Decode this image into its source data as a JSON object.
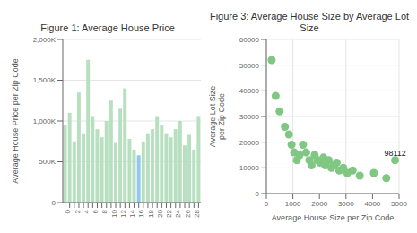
{
  "chart_data": [
    {
      "type": "bar",
      "title": "Figure 1: Average House Price",
      "ylabel": "Average House Price per Zip Code",
      "categories": [
        "0",
        null,
        "2",
        null,
        "4",
        null,
        "6",
        null,
        "8",
        null,
        "10",
        null,
        "12",
        null,
        "14",
        null,
        "16",
        null,
        "18",
        null,
        "20",
        null,
        "22",
        null,
        "24",
        null,
        "26",
        null,
        "28",
        null
      ],
      "values": [
        950000,
        1100000,
        750000,
        1350000,
        850000,
        1750000,
        1050000,
        900000,
        800000,
        1000000,
        1250000,
        730000,
        1150000,
        1400000,
        780000,
        650000,
        580000,
        750000,
        850000,
        900000,
        1050000,
        950000,
        850000,
        800000,
        900000,
        1000000,
        700000,
        830000,
        650000,
        1050000
      ],
      "colors": [
        "#b8e0c0",
        "#b8e0c0",
        "#b8e0c0",
        "#b8e0c0",
        "#b8e0c0",
        "#b8e0c0",
        "#b8e0c0",
        "#b8e0c0",
        "#b8e0c0",
        "#b8e0c0",
        "#b8e0c0",
        "#b8e0c0",
        "#b8e0c0",
        "#b8e0c0",
        "#b8e0c0",
        "#b8e0c0",
        "#90c8f0",
        "#b8e0c0",
        "#b8e0c0",
        "#b8e0c0",
        "#b8e0c0",
        "#b8e0c0",
        "#b8e0c0",
        "#b8e0c0",
        "#b8e0c0",
        "#b8e0c0",
        "#b8e0c0",
        "#b8e0c0",
        "#b8e0c0",
        "#b8e0c0"
      ],
      "ylim": [
        0,
        2000000
      ],
      "yticks": [
        0,
        {
          "value": 500000,
          "label": "500K"
        },
        {
          "value": 1000000,
          "label": "1,000K"
        },
        {
          "value": 1500000,
          "label": "1,500K"
        },
        {
          "value": 2000000,
          "label": "2,000K"
        }
      ],
      "grid": true
    },
    {
      "type": "scatter",
      "title": "Figure 3: Average House Size by Average Lot Size",
      "xlabel": "Average House Size per Zip Code",
      "ylabel": "Average Lot Size\nper Zip Code",
      "x": [
        200,
        350,
        500,
        700,
        850,
        950,
        1050,
        1150,
        1250,
        1380,
        1500,
        1620,
        1700,
        1820,
        1920,
        2020,
        2150,
        2220,
        2350,
        2450,
        2550,
        2650,
        2750,
        2900,
        3050,
        3250,
        3520,
        4050,
        4520,
        4850
      ],
      "y": [
        52000,
        38000,
        32000,
        26000,
        23000,
        19000,
        16000,
        13000,
        15000,
        19000,
        16000,
        13000,
        11000,
        15000,
        13000,
        12000,
        14000,
        11000,
        13000,
        10000,
        11000,
        12000,
        9000,
        10000,
        8000,
        9000,
        7000,
        8000,
        6000,
        13000
      ],
      "color": "#80c784",
      "xlim": [
        0,
        5000
      ],
      "xticks": [
        0,
        1000,
        2000,
        3000,
        4000,
        5000
      ],
      "ylim": [
        0,
        60000
      ],
      "yticks": [
        0,
        10000,
        20000,
        30000,
        40000,
        50000,
        60000
      ],
      "grid": true,
      "annotations": [
        {
          "text": "98112",
          "x": 4850,
          "y": 13000
        }
      ]
    }
  ]
}
